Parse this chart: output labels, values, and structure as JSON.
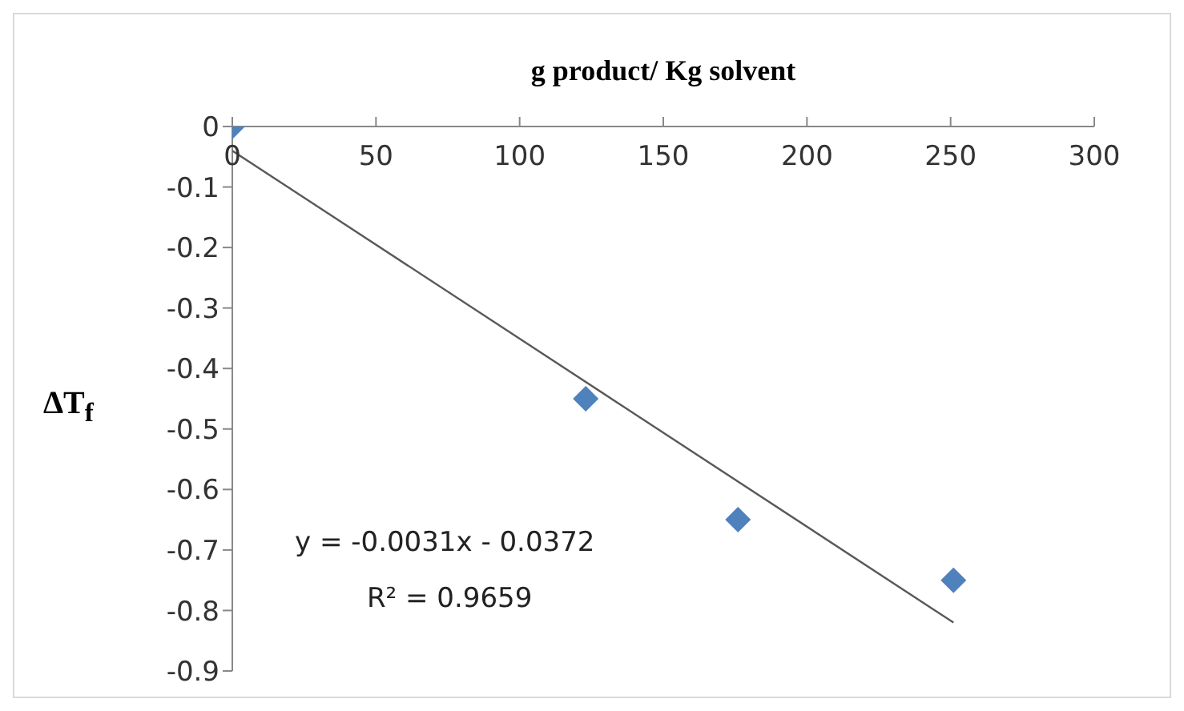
{
  "chart_data": {
    "type": "scatter",
    "xlabel": "g product/ Kg solvent",
    "ylabel": "ΔT$_{f}$",
    "xlim": [
      0,
      300
    ],
    "xticks": [
      0,
      50,
      100,
      150,
      200,
      250,
      300
    ],
    "ylim": [
      -0.9,
      0
    ],
    "yticks": [
      0,
      -0.1,
      -0.2,
      -0.3,
      -0.4,
      -0.5,
      -0.6,
      -0.7,
      -0.8,
      -0.9
    ],
    "grid": false,
    "series": [
      {
        "color": "#4f81bd",
        "marker": "diamond",
        "x": [
          0,
          123,
          176,
          251
        ],
        "values": [
          0,
          -0.45,
          -0.65,
          -0.75
        ]
      },
      {
        "type": "line",
        "color": "#595959",
        "marker": "none",
        "x": [
          0,
          251
        ],
        "values": [
          -0.04,
          -0.82
        ]
      }
    ],
    "annotations": [
      "y = -0.0031x - 0.0372",
      "R² = 0.9659"
    ]
  }
}
